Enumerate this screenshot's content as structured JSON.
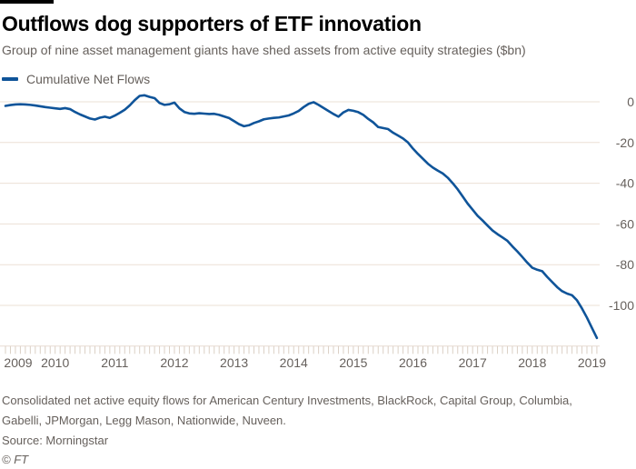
{
  "header": {
    "title": "Outflows dog supporters of ETF innovation",
    "subtitle": "Group of nine asset management giants have shed assets from active equity strategies ($bn)"
  },
  "legend": {
    "label": "Cumulative Net Flows",
    "color": "#0f5499"
  },
  "colors": {
    "accent_line": "#0f5499",
    "title_text": "#000000",
    "muted_text": "#66605c",
    "gridline": "#ebe0d6",
    "axis_line": "#e7dcd2",
    "tick": "#dbd0c5",
    "top_bar": "#000000",
    "background": "#ffffff"
  },
  "chart_data": {
    "type": "line",
    "title": "Outflows dog supporters of ETF innovation",
    "subtitle": "Group of nine asset management giants have shed assets from active equity strategies ($bn)",
    "unit": "$bn",
    "grid": "horizontal",
    "legend_position": "top-left",
    "x_axis": {
      "start_month": "2009-03",
      "end_month": "2019-02",
      "frequency": "monthly",
      "tick_labels": [
        "2009",
        "2010",
        "2011",
        "2012",
        "2013",
        "2014",
        "2015",
        "2016",
        "2017",
        "2018",
        "2019"
      ]
    },
    "y_axis": {
      "ticks": [
        0,
        -20,
        -40,
        -60,
        -80,
        -100
      ],
      "ylim": [
        -120,
        4
      ],
      "side": "right"
    },
    "series": [
      {
        "name": "Cumulative Net Flows",
        "color": "#0f5499",
        "values": [
          -2.0,
          -1.6,
          -1.3,
          -1.2,
          -1.3,
          -1.5,
          -1.8,
          -2.2,
          -2.6,
          -2.9,
          -3.2,
          -3.5,
          -3.1,
          -3.6,
          -5.0,
          -6.2,
          -7.2,
          -8.2,
          -8.7,
          -7.8,
          -7.3,
          -7.9,
          -6.8,
          -5.4,
          -3.9,
          -1.8,
          0.8,
          2.9,
          3.2,
          2.4,
          1.8,
          -0.6,
          -1.5,
          -1.2,
          -0.4,
          -3.2,
          -5.0,
          -5.7,
          -5.9,
          -5.6,
          -5.8,
          -6.0,
          -5.9,
          -6.4,
          -7.2,
          -8.0,
          -9.5,
          -11.0,
          -12.0,
          -11.5,
          -10.4,
          -9.6,
          -8.6,
          -8.2,
          -7.9,
          -7.7,
          -7.2,
          -6.7,
          -5.7,
          -4.5,
          -2.6,
          -1.0,
          -0.2,
          -1.5,
          -3.0,
          -4.5,
          -6.0,
          -7.3,
          -5.2,
          -4.0,
          -4.4,
          -5.1,
          -6.4,
          -8.4,
          -10.1,
          -12.4,
          -12.9,
          -13.4,
          -15.2,
          -16.6,
          -18.0,
          -20.0,
          -23.0,
          -25.6,
          -28.0,
          -30.4,
          -32.3,
          -33.8,
          -35.2,
          -37.3,
          -40.0,
          -43.0,
          -46.5,
          -50.0,
          -53.0,
          -56.0,
          -58.3,
          -60.8,
          -63.2,
          -65.0,
          -66.6,
          -68.3,
          -71.0,
          -73.5,
          -76.2,
          -79.0,
          -81.5,
          -82.5,
          -83.2,
          -86.0,
          -88.5,
          -91.0,
          -93.0,
          -94.2,
          -95.0,
          -97.5,
          -101.5,
          -106.0,
          -111.0,
          -116.0
        ]
      }
    ]
  },
  "footer": {
    "note_line1": "Consolidated net active equity flows for American Century Investments, BlackRock, Capital Group, Columbia,",
    "note_line2": "Gabelli, JPMorgan, Legg Mason, Nationwide, Nuveen.",
    "source": "Source: Morningstar",
    "copyright": "© FT"
  }
}
